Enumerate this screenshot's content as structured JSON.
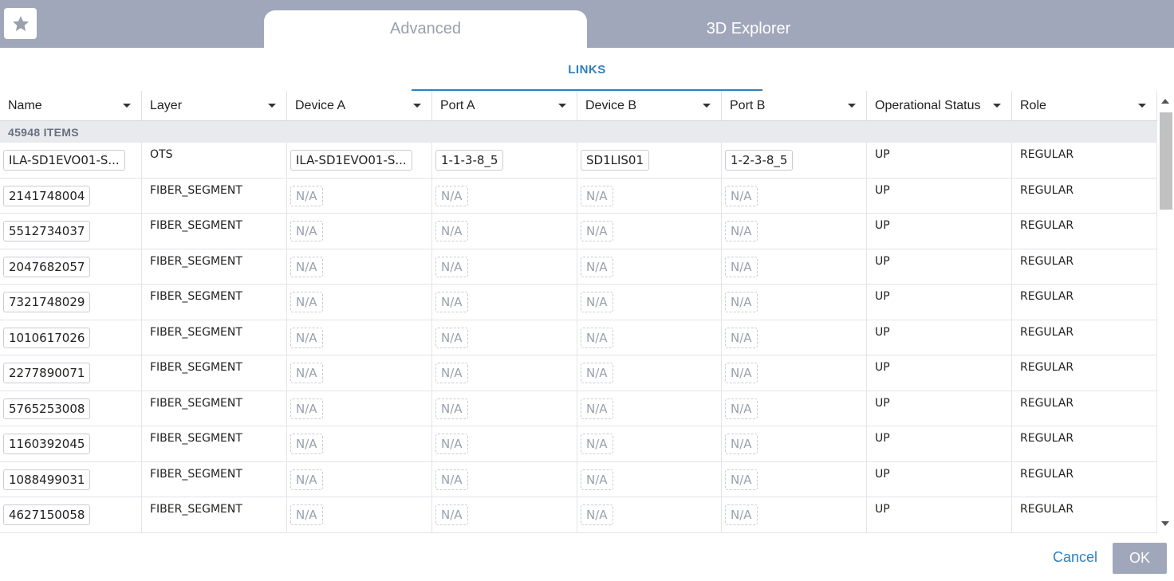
{
  "tabs": [
    {
      "label": "Advanced",
      "active": true
    },
    {
      "label": "3D Explorer",
      "active": false
    }
  ],
  "subtab": "LINKS",
  "columns": [
    "Name",
    "Layer",
    "Device A",
    "Port A",
    "Device B",
    "Port B",
    "Operational Status",
    "Role"
  ],
  "item_count": "45948 ITEMS",
  "rows": [
    {
      "name": "ILA-SD1EVO01-S...",
      "layer": "OTS",
      "device_a": "ILA-SD1EVO01-S...",
      "port_a": "1-1-3-8_5",
      "device_b": "SD1LIS01",
      "port_b": "1-2-3-8_5",
      "status": "UP",
      "role": "REGULAR"
    },
    {
      "name": "2141748004",
      "layer": "FIBER_SEGMENT",
      "device_a": "N/A",
      "port_a": "N/A",
      "device_b": "N/A",
      "port_b": "N/A",
      "status": "UP",
      "role": "REGULAR"
    },
    {
      "name": "5512734037",
      "layer": "FIBER_SEGMENT",
      "device_a": "N/A",
      "port_a": "N/A",
      "device_b": "N/A",
      "port_b": "N/A",
      "status": "UP",
      "role": "REGULAR"
    },
    {
      "name": "2047682057",
      "layer": "FIBER_SEGMENT",
      "device_a": "N/A",
      "port_a": "N/A",
      "device_b": "N/A",
      "port_b": "N/A",
      "status": "UP",
      "role": "REGULAR"
    },
    {
      "name": "7321748029",
      "layer": "FIBER_SEGMENT",
      "device_a": "N/A",
      "port_a": "N/A",
      "device_b": "N/A",
      "port_b": "N/A",
      "status": "UP",
      "role": "REGULAR"
    },
    {
      "name": "1010617026",
      "layer": "FIBER_SEGMENT",
      "device_a": "N/A",
      "port_a": "N/A",
      "device_b": "N/A",
      "port_b": "N/A",
      "status": "UP",
      "role": "REGULAR"
    },
    {
      "name": "2277890071",
      "layer": "FIBER_SEGMENT",
      "device_a": "N/A",
      "port_a": "N/A",
      "device_b": "N/A",
      "port_b": "N/A",
      "status": "UP",
      "role": "REGULAR"
    },
    {
      "name": "5765253008",
      "layer": "FIBER_SEGMENT",
      "device_a": "N/A",
      "port_a": "N/A",
      "device_b": "N/A",
      "port_b": "N/A",
      "status": "UP",
      "role": "REGULAR"
    },
    {
      "name": "1160392045",
      "layer": "FIBER_SEGMENT",
      "device_a": "N/A",
      "port_a": "N/A",
      "device_b": "N/A",
      "port_b": "N/A",
      "status": "UP",
      "role": "REGULAR"
    },
    {
      "name": "1088499031",
      "layer": "FIBER_SEGMENT",
      "device_a": "N/A",
      "port_a": "N/A",
      "device_b": "N/A",
      "port_b": "N/A",
      "status": "UP",
      "role": "REGULAR"
    },
    {
      "name": "4627150058",
      "layer": "FIBER_SEGMENT",
      "device_a": "N/A",
      "port_a": "N/A",
      "device_b": "N/A",
      "port_b": "N/A",
      "status": "UP",
      "role": "REGULAR"
    }
  ],
  "footer": {
    "cancel": "Cancel",
    "ok": "OK"
  },
  "colors": {
    "header_bg": "#a1a7bb",
    "accent": "#2d80c3"
  }
}
